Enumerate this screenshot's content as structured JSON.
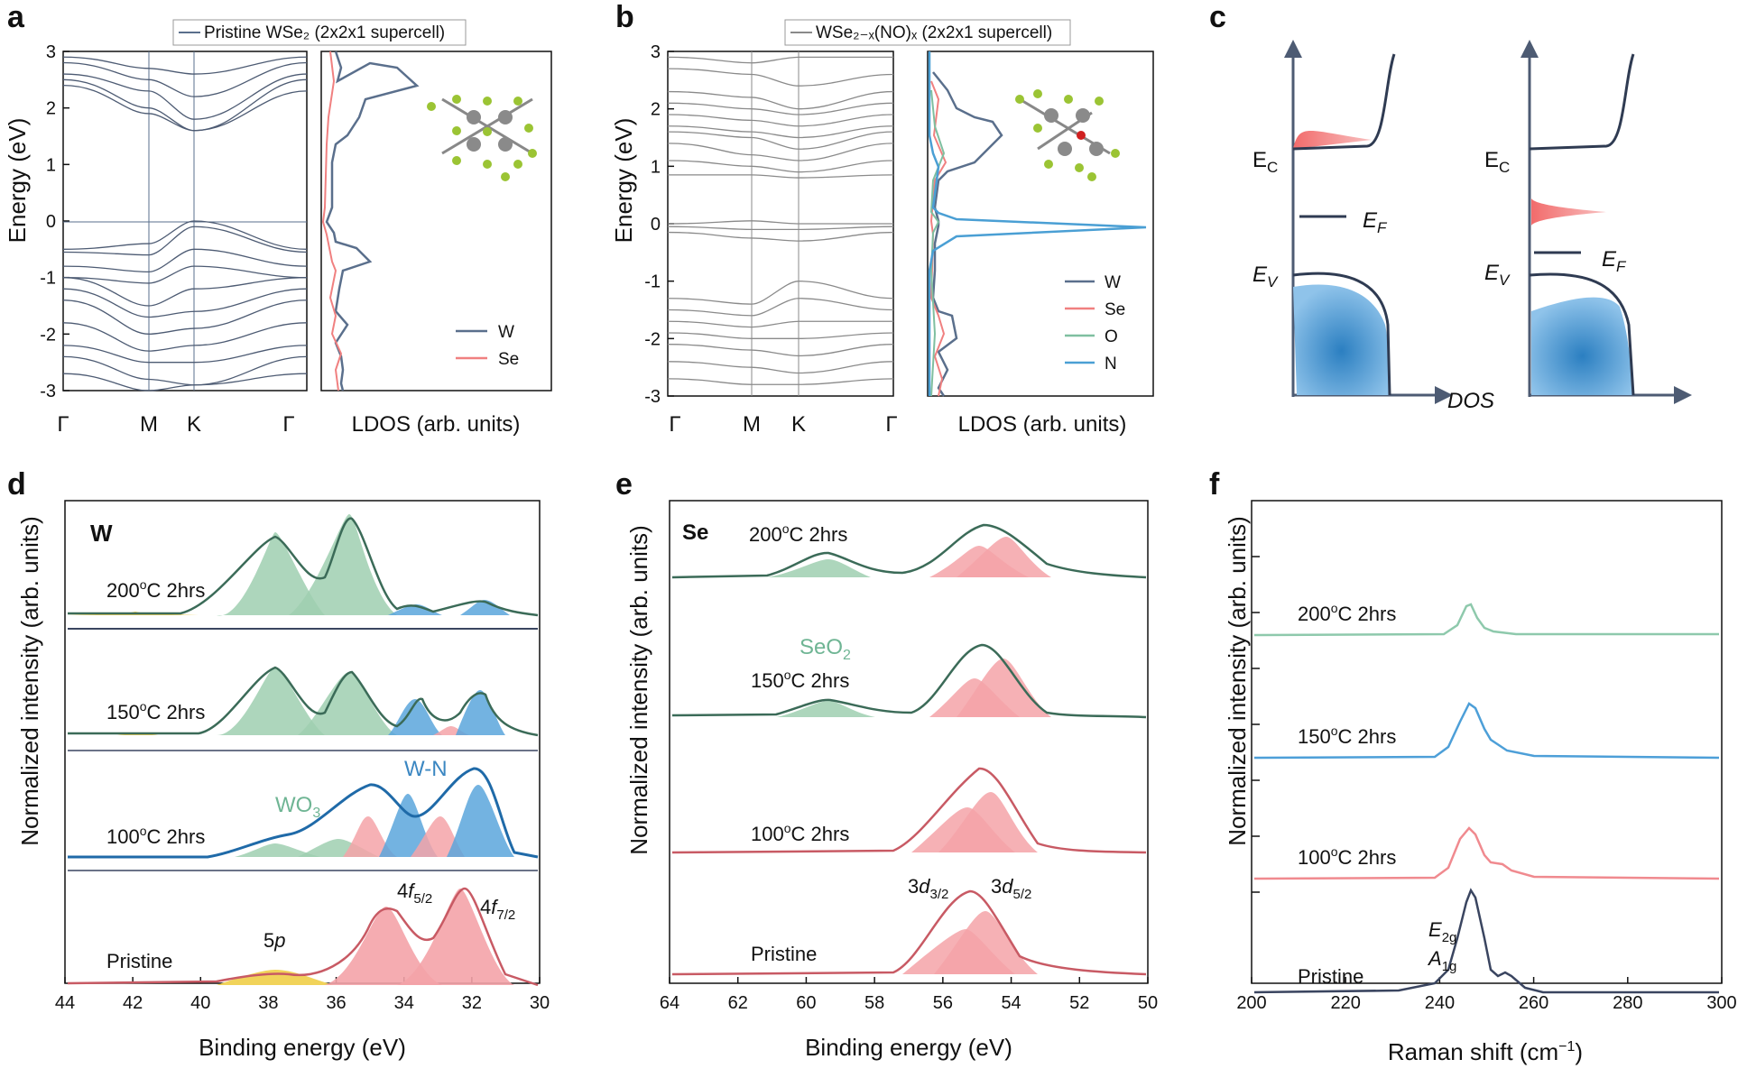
{
  "figure": {
    "panel_labels": [
      "a",
      "b",
      "c",
      "d",
      "e",
      "f"
    ],
    "colors": {
      "W": "#5a6f8c",
      "Se": "#f08080",
      "O": "#7fbfa0",
      "N": "#4a9fd4",
      "band": "#4d5b73",
      "green_fill": "#9fcfb0",
      "blue_fill": "#5aa6dc",
      "pink_fill": "#f4a3a8",
      "yellow_fill": "#f1d35a",
      "raman_200": "#8ec9ac",
      "raman_150": "#4d9fd8",
      "raman_100": "#f08a8f",
      "raman_pristine": "#3a4560"
    },
    "panel_a": {
      "legend": "Pristine WSe₂ (2x2x1 supercell)",
      "ylabel": "Energy (eV)",
      "yticks": [
        "3",
        "2",
        "1",
        "0",
        "-1",
        "-2",
        "-3"
      ],
      "kpoints": [
        "Γ",
        "M",
        "K",
        "Γ"
      ],
      "ldos_label": "LDOS (arb. units)",
      "ldos_legend": [
        "W",
        "Se"
      ]
    },
    "panel_b": {
      "legend": "WSe₂₋ₓ(NO)ₓ (2x2x1 supercell)",
      "ylabel": "Energy (eV)",
      "yticks": [
        "3",
        "2",
        "1",
        "0",
        "-1",
        "-2",
        "-3"
      ],
      "kpoints": [
        "Γ",
        "M",
        "K",
        "Γ"
      ],
      "ldos_label": "LDOS (arb. units)",
      "ldos_legend": [
        "W",
        "Se",
        "O",
        "N"
      ]
    },
    "panel_c": {
      "labels_left": {
        "ec": "E",
        "ec_sub": "C",
        "ef": "E",
        "ef_sub": "F",
        "ev": "E",
        "ev_sub": "V"
      },
      "labels_right": {
        "ec": "E",
        "ec_sub": "C",
        "ef": "E",
        "ef_sub": "F",
        "ev": "E",
        "ev_sub": "V"
      },
      "dos_label": "DOS"
    },
    "panel_d": {
      "element": "W",
      "xlabel": "Binding energy (eV)",
      "ylabel": "Normalized intensity (arb. units)",
      "xticks": [
        "44",
        "42",
        "40",
        "38",
        "36",
        "34",
        "32",
        "30"
      ],
      "spectra": [
        {
          "temp": "200",
          "sup": "o",
          "rest": "C 2hrs"
        },
        {
          "temp": "150",
          "sup": "o",
          "rest": "C 2hrs"
        },
        {
          "temp": "100",
          "sup": "o",
          "rest": "C 2hrs"
        },
        {
          "label": "Pristine"
        }
      ],
      "annotations": {
        "wo3": "WO",
        "wo3_sub": "3",
        "wn": "W-N",
        "p5": "5",
        "p5_italic": "p",
        "f52": "4",
        "f52_italic": "f",
        "f52_sub": "5/2",
        "f72": "4",
        "f72_italic": "f",
        "f72_sub": "7/2"
      }
    },
    "panel_e": {
      "element": "Se",
      "xlabel": "Binding energy (eV)",
      "ylabel": "Normalized intensity (arb. units)",
      "xticks": [
        "64",
        "62",
        "60",
        "58",
        "56",
        "54",
        "52",
        "50"
      ],
      "spectra": [
        {
          "temp": "200",
          "sup": "o",
          "rest": "C 2hrs"
        },
        {
          "temp": "150",
          "sup": "o",
          "rest": "C 2hrs"
        },
        {
          "temp": "100",
          "sup": "o",
          "rest": "C 2hrs"
        },
        {
          "label": "Pristine"
        }
      ],
      "annotations": {
        "seo2": "SeO",
        "seo2_sub": "2",
        "d32": "3",
        "d32_italic": "d",
        "d32_sub": "3/2",
        "d52": "3",
        "d52_italic": "d",
        "d52_sub": "5/2"
      }
    },
    "panel_f": {
      "xlabel": "Raman shift (cm",
      "xlabel_sup": "−1",
      "xlabel_end": ")",
      "ylabel": "Normalized intensity (arb. units)",
      "xticks": [
        "200",
        "220",
        "240",
        "260",
        "280",
        "300"
      ],
      "spectra": [
        {
          "temp": "200",
          "sup": "o",
          "rest": "C 2hrs"
        },
        {
          "temp": "150",
          "sup": "o",
          "rest": "C 2hrs"
        },
        {
          "temp": "100",
          "sup": "o",
          "rest": "C 2hrs"
        },
        {
          "label": "Pristine"
        }
      ],
      "annotations": {
        "e2g": "E",
        "e2g_sub": "2g",
        "a1g": "A",
        "a1g_sub": "1g"
      }
    }
  }
}
